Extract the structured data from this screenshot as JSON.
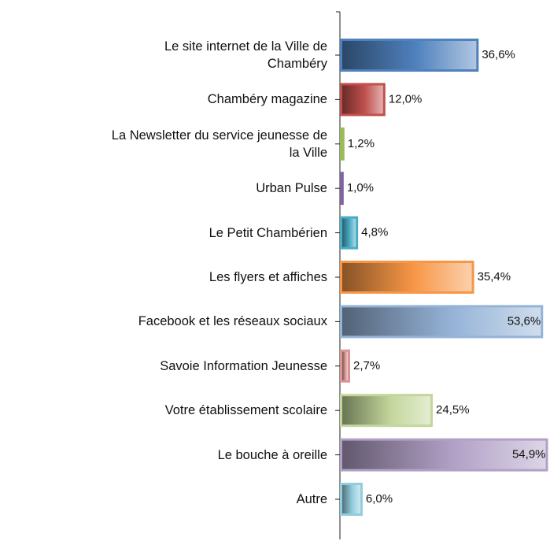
{
  "chart_data": {
    "type": "bar",
    "orientation": "horizontal",
    "categories": [
      "Le site internet de la Ville de\nChambéry",
      "Chambéry magazine",
      "La Newsletter du service jeunesse de\nla Ville",
      "Urban Pulse",
      "Le Petit Chambérien",
      "Les flyers et affiches",
      "Facebook et les réseaux sociaux",
      "Savoie Information Jeunesse",
      "Votre établissement scolaire",
      "Le bouche à oreille",
      "Autre"
    ],
    "values": [
      36.6,
      12.0,
      1.2,
      1.0,
      4.8,
      35.4,
      53.6,
      2.7,
      24.5,
      54.9,
      6.0
    ],
    "value_labels": [
      "36,6%",
      "12,0%",
      "1,2%",
      "1,0%",
      "4,8%",
      "35,4%",
      "53,6%",
      "2,7%",
      "24,5%",
      "54,9%",
      "6,0%"
    ],
    "colors": [
      "#4f81bd",
      "#c0504d",
      "#9bbb59",
      "#8064a2",
      "#4bacc6",
      "#f79646",
      "#95b3d7",
      "#d99694",
      "#c3d69b",
      "#b2a1c7",
      "#93cddd"
    ],
    "xlim": [
      0,
      55
    ]
  }
}
